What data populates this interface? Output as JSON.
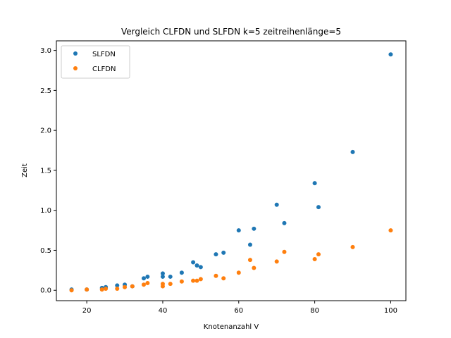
{
  "chart_data": {
    "type": "scatter",
    "title": "Vergleich CLFDN und SLFDN k=5 zeitreihenlänge=5",
    "xlabel": "Knotenanzahl V",
    "ylabel": "Zeit",
    "xlim": [
      12,
      104
    ],
    "ylim": [
      -0.13,
      3.12
    ],
    "xticks": [
      20,
      40,
      60,
      80,
      100
    ],
    "yticks": [
      0.0,
      0.5,
      1.0,
      1.5,
      2.0,
      2.5,
      3.0
    ],
    "xtick_labels": [
      "20",
      "40",
      "60",
      "80",
      "100"
    ],
    "ytick_labels": [
      "0.0",
      "0.5",
      "1.0",
      "1.5",
      "2.0",
      "2.5",
      "3.0"
    ],
    "grid": false,
    "legend_position": "top-left",
    "series": [
      {
        "name": "SLFDN",
        "color": "#1f77b4",
        "x": [
          16,
          20,
          24,
          25,
          28,
          30,
          32,
          35,
          36,
          40,
          40,
          42,
          45,
          48,
          49,
          50,
          54,
          56,
          60,
          63,
          64,
          70,
          72,
          80,
          81,
          90,
          100
        ],
        "y": [
          0.01,
          0.01,
          0.03,
          0.04,
          0.06,
          0.07,
          0.05,
          0.15,
          0.17,
          0.21,
          0.17,
          0.17,
          0.22,
          0.35,
          0.31,
          0.29,
          0.45,
          0.47,
          0.75,
          0.57,
          0.77,
          1.07,
          0.84,
          1.34,
          1.04,
          1.73,
          2.95
        ]
      },
      {
        "name": "CLFDN",
        "color": "#ff7f0e",
        "x": [
          16,
          20,
          24,
          25,
          28,
          30,
          32,
          35,
          36,
          40,
          40,
          42,
          45,
          48,
          49,
          50,
          54,
          56,
          60,
          63,
          64,
          70,
          72,
          80,
          81,
          90,
          100
        ],
        "y": [
          0.0,
          0.01,
          0.01,
          0.02,
          0.02,
          0.04,
          0.05,
          0.07,
          0.09,
          0.08,
          0.05,
          0.08,
          0.11,
          0.12,
          0.12,
          0.14,
          0.18,
          0.15,
          0.22,
          0.38,
          0.28,
          0.36,
          0.48,
          0.39,
          0.45,
          0.54,
          0.75
        ]
      }
    ]
  }
}
